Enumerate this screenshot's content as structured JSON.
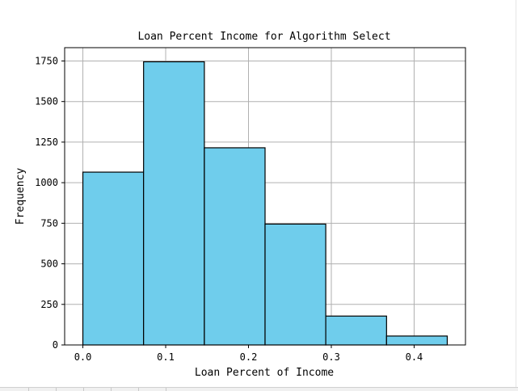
{
  "chart_data": {
    "type": "bar",
    "title": "Loan Percent Income for Algorithm Select",
    "xlabel": "Loan Percent of Income",
    "ylabel": "Frequency",
    "bins": [
      {
        "start": 0.0,
        "end": 0.0733,
        "value": 1065
      },
      {
        "start": 0.0733,
        "end": 0.1467,
        "value": 1745
      },
      {
        "start": 0.1467,
        "end": 0.22,
        "value": 1215
      },
      {
        "start": 0.22,
        "end": 0.2933,
        "value": 745
      },
      {
        "start": 0.2933,
        "end": 0.3667,
        "value": 178
      },
      {
        "start": 0.3667,
        "end": 0.44,
        "value": 55
      }
    ],
    "xticks": [
      "0.0",
      "0.1",
      "0.2",
      "0.3",
      "0.4"
    ],
    "xtick_values": [
      0.0,
      0.1,
      0.2,
      0.3,
      0.4
    ],
    "yticks": [
      "0",
      "250",
      "500",
      "750",
      "1000",
      "1250",
      "1500",
      "1750"
    ],
    "ytick_values": [
      0,
      250,
      500,
      750,
      1000,
      1250,
      1500,
      1750
    ],
    "xlim": [
      -0.022,
      0.462
    ],
    "ylim": [
      0,
      1832
    ],
    "grid": true,
    "bar_color": "#6fcdec",
    "edge_color": "#000000",
    "grid_color": "#b0b0b0"
  }
}
